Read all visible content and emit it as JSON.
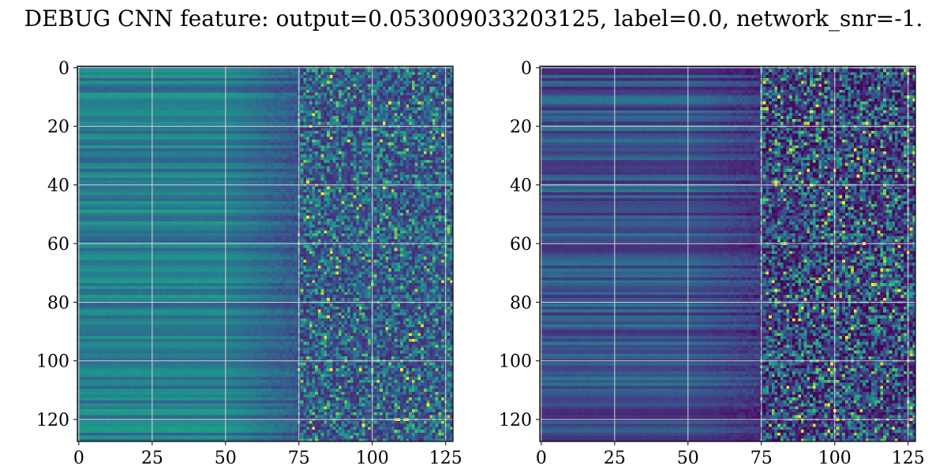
{
  "figure": {
    "title": "DEBUG CNN feature: output=0.053009033203125, label=0.0, network_snr=-1."
  },
  "chart_data": [
    {
      "type": "heatmap",
      "title": "",
      "xlabel": "",
      "ylabel": "",
      "rows": 128,
      "cols": 128,
      "xlim": [
        0,
        128
      ],
      "ylim": [
        128,
        0
      ],
      "xticks": [
        0,
        25,
        50,
        75,
        100,
        125
      ],
      "yticks": [
        0,
        20,
        40,
        60,
        80,
        100,
        120
      ],
      "xtick_labels": [
        "0",
        "25",
        "50",
        "75",
        "100",
        "125"
      ],
      "ytick_labels": [
        "0",
        "20",
        "40",
        "60",
        "80",
        "100",
        "120"
      ],
      "colormap": "viridis",
      "grid": true,
      "description_values": {
        "cols_0_50": "smooth teal/blue horizontal bands, value ~0.3-0.55",
        "cols_50_75": "darker blue-purple, value ~0.2-0.35",
        "cols_75_128": "noisy speckle, value ~0.05-0.95 with yellow hot spots"
      },
      "hot_spots": [
        {
          "x": 86,
          "y": 3
        },
        {
          "x": 80,
          "y": 16
        },
        {
          "x": 83,
          "y": 43
        },
        {
          "x": 86,
          "y": 63
        },
        {
          "x": 82,
          "y": 68
        },
        {
          "x": 88,
          "y": 68
        },
        {
          "x": 85,
          "y": 79
        },
        {
          "x": 86,
          "y": 103
        },
        {
          "x": 96,
          "y": 103
        },
        {
          "x": 110,
          "y": 103
        },
        {
          "x": 121,
          "y": 3
        }
      ]
    },
    {
      "type": "heatmap",
      "title": "",
      "xlabel": "",
      "ylabel": "",
      "rows": 128,
      "cols": 128,
      "xlim": [
        0,
        128
      ],
      "ylim": [
        128,
        0
      ],
      "xticks": [
        0,
        25,
        50,
        75,
        100,
        125
      ],
      "yticks": [
        0,
        20,
        40,
        60,
        80,
        100,
        120
      ],
      "xtick_labels": [
        "0",
        "25",
        "50",
        "75",
        "100",
        "125"
      ],
      "ytick_labels": [
        "0",
        "20",
        "40",
        "60",
        "80",
        "100",
        "120"
      ],
      "colormap": "viridis",
      "grid": true,
      "description_values": {
        "cols_0_50": "dark blue/purple horizontal bands, value ~0.1-0.4",
        "cols_50_75": "dark purple, value ~0.05-0.3",
        "cols_75_128": "noisy speckle, value ~0.0-1.0 with yellow hot spots"
      },
      "hot_spots": [
        {
          "x": 92,
          "y": 15
        },
        {
          "x": 99,
          "y": 15
        },
        {
          "x": 111,
          "y": 19
        },
        {
          "x": 88,
          "y": 36
        },
        {
          "x": 80,
          "y": 39
        },
        {
          "x": 92,
          "y": 40
        },
        {
          "x": 80,
          "y": 76
        },
        {
          "x": 89,
          "y": 82
        },
        {
          "x": 98,
          "y": 115
        },
        {
          "x": 116,
          "y": 69
        },
        {
          "x": 104,
          "y": 41
        }
      ]
    }
  ]
}
